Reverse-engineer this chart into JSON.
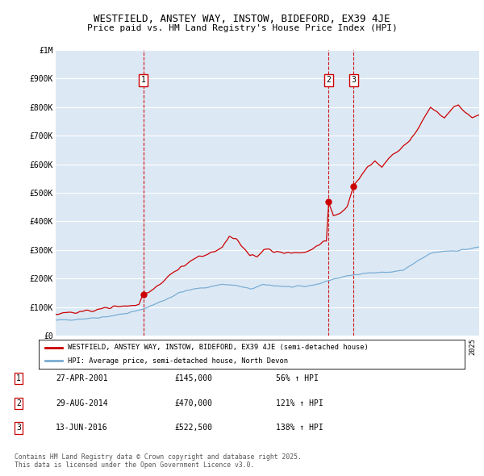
{
  "title_line1": "WESTFIELD, ANSTEY WAY, INSTOW, BIDEFORD, EX39 4JE",
  "title_line2": "Price paid vs. HM Land Registry's House Price Index (HPI)",
  "bg_color": "#dce9f5",
  "red_line_color": "#cc0000",
  "blue_line_color": "#7aadd4",
  "yticks": [
    0,
    100000,
    200000,
    300000,
    400000,
    500000,
    600000,
    700000,
    800000,
    900000,
    1000000
  ],
  "ytick_labels": [
    "£0",
    "£100K",
    "£200K",
    "£300K",
    "£400K",
    "£500K",
    "£600K",
    "£700K",
    "£800K",
    "£900K",
    "£1M"
  ],
  "xmin": 1995.0,
  "xmax": 2025.5,
  "ymin": 0,
  "ymax": 1000000,
  "sale_dates": [
    2001.32,
    2014.65,
    2016.45
  ],
  "sale_prices": [
    145000,
    470000,
    522500
  ],
  "sale_labels": [
    "1",
    "2",
    "3"
  ],
  "legend_label_red": "WESTFIELD, ANSTEY WA, INSTOW, BIDEFORD, EX39 4JE (semi-detached house)",
  "legend_label_blue": "HPI: Average price, semi-detached house, North Devon",
  "table_rows": [
    {
      "num": "1",
      "date": "27-APR-2001",
      "price": "£145,000",
      "hpi": "56% ↑ HPI"
    },
    {
      "num": "2",
      "date": "29-AUG-2014",
      "price": "£470,000",
      "hpi": "121% ↑ HPI"
    },
    {
      "num": "3",
      "date": "13-JUN-2016",
      "price": "£522,500",
      "hpi": "138% ↑ HPI"
    }
  ],
  "footer": "Contains HM Land Registry data © Crown copyright and database right 2025.\nThis data is licensed under the Open Government Licence v3.0."
}
